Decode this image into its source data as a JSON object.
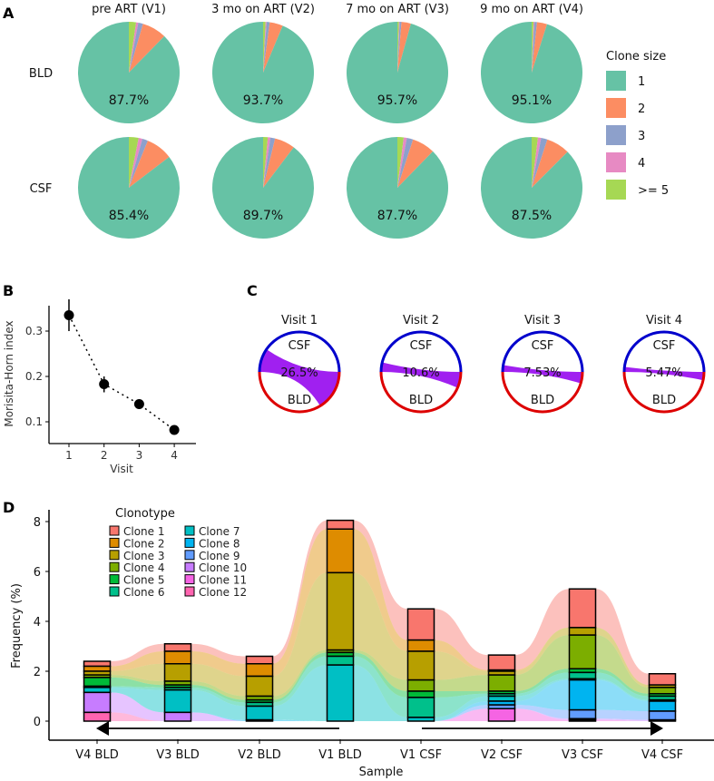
{
  "panels": {
    "a": "A",
    "b": "B",
    "c": "C",
    "d": "D"
  },
  "chart_data": [
    {
      "type": "pie",
      "panel": "A",
      "columns": [
        "pre ART (V1)",
        "3 mo on ART (V2)",
        "7 mo on ART (V3)",
        "9 mo on ART (V4)"
      ],
      "rows": [
        "BLD",
        "CSF"
      ],
      "legend_title": "Clone size",
      "legend": [
        "1",
        "2",
        "3",
        "4",
        ">= 5"
      ],
      "colors": [
        "#66c2a5",
        "#fc8d62",
        "#8da0cb",
        "#e78ac3",
        "#a6d854"
      ],
      "labels": [
        [
          "87.7%",
          "93.7%",
          "95.7%",
          "95.1%"
        ],
        [
          "85.4%",
          "89.7%",
          "87.7%",
          "87.5%"
        ]
      ],
      "values": [
        [
          [
            87.7,
            7.8,
            1.5,
            0.7,
            2.3
          ],
          [
            93.7,
            4.2,
            1.0,
            0.3,
            0.8
          ],
          [
            95.7,
            3.0,
            0.6,
            0.2,
            0.5
          ],
          [
            95.1,
            3.2,
            0.8,
            0.3,
            0.6
          ]
        ],
        [
          [
            85.4,
            8.5,
            1.8,
            1.2,
            3.1
          ],
          [
            89.7,
            6.5,
            1.5,
            0.8,
            1.5
          ],
          [
            87.7,
            7.3,
            2.0,
            1.0,
            2.0
          ],
          [
            87.5,
            7.5,
            2.0,
            1.0,
            2.0
          ]
        ]
      ]
    },
    {
      "type": "scatter",
      "panel": "B",
      "xlabel": "Visit",
      "ylabel": "Morisita-Horn index",
      "x": [
        1,
        2,
        3,
        4
      ],
      "y": [
        0.335,
        0.183,
        0.139,
        0.082
      ],
      "err_low": [
        0.3,
        0.165,
        0.128,
        0.075
      ],
      "err_high": [
        0.37,
        0.2,
        0.15,
        0.09
      ],
      "xticks": [
        "1",
        "2",
        "3",
        "4"
      ],
      "yticks": [
        "0.1",
        "0.2",
        "0.3"
      ],
      "ytick_values": [
        0.1,
        0.2,
        0.3
      ]
    },
    {
      "type": "chord",
      "panel": "C",
      "titles": [
        "Visit 1",
        "Visit 2",
        "Visit 3",
        "Visit 4"
      ],
      "top_label": "CSF",
      "bottom_label": "BLD",
      "labels": [
        "26.5%",
        "10.6%",
        "7.53%",
        "5.47%"
      ],
      "values": [
        26.5,
        10.6,
        7.53,
        5.47
      ],
      "colors": {
        "csf": "#0000cc",
        "bld": "#dd0000",
        "link": "#a020f0"
      }
    },
    {
      "type": "area",
      "subtype": "alluvial-stacked-bar",
      "panel": "D",
      "xlabel": "Sample",
      "ylabel": "Frequency (%)",
      "ylim": [
        0,
        8
      ],
      "yticks": [
        "0",
        "2",
        "4",
        "6",
        "8"
      ],
      "ytick_values": [
        0,
        2,
        4,
        6,
        8
      ],
      "categories": [
        "V4 BLD",
        "V3 BLD",
        "V2 BLD",
        "V1 BLD",
        "V1 CSF",
        "V2 CSF",
        "V3 CSF",
        "V4 CSF"
      ],
      "legend_title": "Clonotype",
      "series": [
        {
          "name": "Clone 1",
          "color": "#F8766D",
          "values": [
            0.2,
            0.3,
            0.3,
            0.35,
            1.25,
            0.6,
            1.55,
            0.45
          ]
        },
        {
          "name": "Clone 2",
          "color": "#DE8C00",
          "values": [
            0.2,
            0.5,
            0.5,
            1.75,
            0.45,
            0.05,
            0,
            0
          ]
        },
        {
          "name": "Clone 3",
          "color": "#B79F00",
          "values": [
            0.15,
            0.7,
            0.8,
            3.1,
            1.15,
            0.15,
            0.3,
            0.1
          ]
        },
        {
          "name": "Clone 4",
          "color": "#7CAE00",
          "values": [
            0.1,
            0.15,
            0.15,
            0.1,
            0.45,
            0.65,
            1.35,
            0.25
          ]
        },
        {
          "name": "Clone 5",
          "color": "#00BA38",
          "values": [
            0.35,
            0.1,
            0.1,
            0.15,
            0.25,
            0.1,
            0.15,
            0.1
          ]
        },
        {
          "name": "Clone 6",
          "color": "#00C08B",
          "values": [
            0.05,
            0.1,
            0.15,
            0.35,
            0.8,
            0.1,
            0.25,
            0.15
          ]
        },
        {
          "name": "Clone 7",
          "color": "#00BFC4",
          "values": [
            0.2,
            0.9,
            0.55,
            2.25,
            0.15,
            0.2,
            0.05,
            0.05
          ]
        },
        {
          "name": "Clone 8",
          "color": "#00B4F0",
          "values": [
            0,
            0,
            0.05,
            0,
            0,
            0.15,
            1.2,
            0.4
          ]
        },
        {
          "name": "Clone 9",
          "color": "#619CFF",
          "values": [
            0,
            0,
            0,
            0,
            0,
            0.15,
            0.35,
            0.35
          ]
        },
        {
          "name": "Clone 10",
          "color": "#C77CFF",
          "values": [
            0.8,
            0.35,
            0,
            0,
            0,
            0,
            0.05,
            0.05
          ]
        },
        {
          "name": "Clone 11",
          "color": "#F564E3",
          "values": [
            0,
            0,
            0,
            0,
            0,
            0.5,
            0.05,
            0
          ]
        },
        {
          "name": "Clone 12",
          "color": "#FF64B0",
          "values": [
            0.35,
            0,
            0,
            0,
            0,
            0,
            0,
            0
          ]
        }
      ]
    }
  ]
}
